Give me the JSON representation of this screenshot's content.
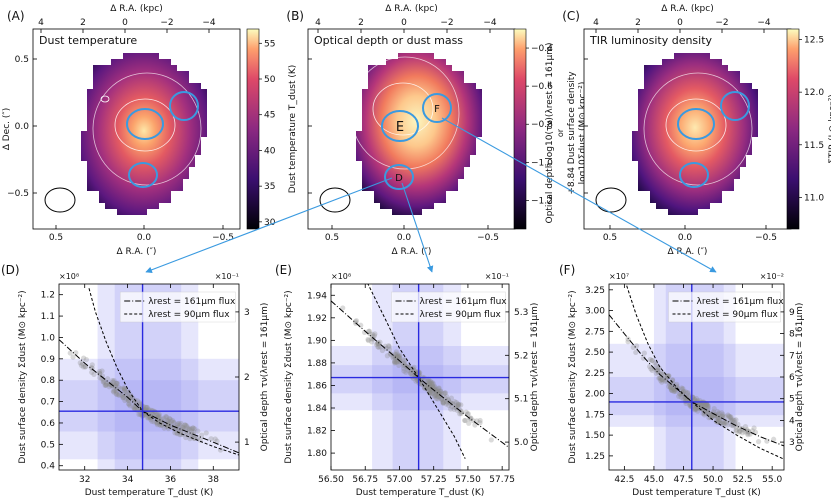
{
  "figure": {
    "connectors_color": "#3a9ae0",
    "ellipse_color": "#3a9ae0"
  },
  "chart_data": [
    {
      "type": "heatmap",
      "panel_label": "(A)",
      "title": "Dust temperature",
      "top_axis_label": "Δ R.A. (kpc)",
      "top_ticks": [
        "4",
        "2",
        "0",
        "−2",
        "−4"
      ],
      "xlabel": "Δ R.A. (″)",
      "x_ticks": [
        "0.5",
        "0.0",
        "−0.5"
      ],
      "ylabel": "Δ Dec. (″)",
      "y_ticks": [
        "0.5",
        "0.0",
        "−0.5"
      ],
      "colorbar_label": "Dust temperature T_dust (K)",
      "colorbar_ticks": [
        "55",
        "50",
        "45",
        "40",
        "35",
        "30"
      ],
      "colorbar_range": [
        29,
        57
      ],
      "regions": [
        "E",
        "D",
        "F"
      ]
    },
    {
      "type": "heatmap",
      "panel_label": "(B)",
      "title": "Optical depth or dust mass",
      "top_axis_label": "Δ R.A. (kpc)",
      "top_ticks": [
        "4",
        "2",
        "0",
        "−2",
        "−4"
      ],
      "xlabel": "Δ R.A. (″)",
      "x_ticks": [
        "0.5",
        "0.0",
        "−0.5"
      ],
      "colorbar_label_lines": [
        "Optical depth log10(τν)(λrest = 161μm)",
        "or",
        "+8.84 Dust surface density",
        "log10Σdust (M⊙ kpc⁻²)"
      ],
      "colorbar_ticks": [
        "−0.4",
        "−0.6",
        "−0.8",
        "−1.0",
        "−1.2"
      ],
      "colorbar_range": [
        -1.35,
        -0.3
      ],
      "regions": [
        "E",
        "D",
        "F"
      ],
      "region_labels": {
        "E": "E",
        "D": "D",
        "F": "F"
      }
    },
    {
      "type": "heatmap",
      "panel_label": "(C)",
      "title": "TIR luminosity density",
      "top_axis_label": "Δ R.A. (kpc)",
      "top_ticks": [
        "4",
        "2",
        "0",
        "−2",
        "−4"
      ],
      "xlabel": "Δ R.A. (″)",
      "x_ticks": [
        "0.5",
        "0.0",
        "−0.5"
      ],
      "colorbar_label": "ΣTIR (L⊙ kpc⁻²)",
      "colorbar_ticks": [
        "12.5",
        "12.0",
        "11.5",
        "11.0"
      ],
      "colorbar_range": [
        10.7,
        12.6
      ],
      "regions": [
        "E",
        "D",
        "F"
      ]
    },
    {
      "type": "scatter",
      "panel_label": "(D)",
      "xlabel": "Dust temperature T_dust (K)",
      "x_ticks": [
        "32",
        "34",
        "36",
        "38"
      ],
      "xlim": [
        30.8,
        39.2
      ],
      "ylabel": "Dust surface density Σdust (M⊙ kpc⁻²)",
      "y_ticks": [
        "0.4",
        "0.5",
        "0.6",
        "0.7",
        "0.8",
        "0.9",
        "1.0",
        "1.1",
        "1.2"
      ],
      "ylim": [
        0.38,
        1.25
      ],
      "y_scale_text": "×10⁸",
      "right_label": "Optical depth τν(λrest = 161μm)",
      "right_ticks": [
        "1",
        "2",
        "3"
      ],
      "right_scale_text": "×10⁻¹",
      "best_fit": {
        "x": 34.7,
        "y": 0.655
      },
      "x_band_inner": [
        33.4,
        36.5
      ],
      "x_band_outer": [
        32.6,
        37.3
      ],
      "y_band_inner": [
        0.56,
        0.8
      ],
      "y_band_outer": [
        0.43,
        0.9
      ],
      "legend": [
        "λrest = 161μm flux",
        "λrest = 90μm flux"
      ],
      "line_161": {
        "x": [
          30.8,
          32,
          33,
          34,
          34.7,
          36,
          37,
          38,
          39.2
        ],
        "y": [
          0.99,
          0.88,
          0.8,
          0.72,
          0.655,
          0.59,
          0.55,
          0.51,
          0.46
        ]
      },
      "line_90": {
        "x": [
          32.2,
          32.5,
          33,
          33.5,
          34,
          34.7,
          35.5,
          36.5,
          38,
          39.2
        ],
        "y": [
          1.23,
          1.12,
          0.98,
          0.86,
          0.76,
          0.655,
          0.6,
          0.55,
          0.49,
          0.45
        ]
      }
    },
    {
      "type": "scatter",
      "panel_label": "(E)",
      "xlabel": "Dust temperature T_dust (K)",
      "x_ticks": [
        "56.50",
        "56.75",
        "57.00",
        "57.25",
        "57.50",
        "57.75"
      ],
      "xlim": [
        56.5,
        57.8
      ],
      "ylabel": "Dust surface density Σdust (M⊙ kpc⁻²)",
      "y_ticks": [
        "1.80",
        "1.82",
        "1.84",
        "1.86",
        "1.88",
        "1.90",
        "1.92",
        "1.94"
      ],
      "ylim": [
        1.785,
        1.95
      ],
      "y_scale_text": "×10⁸",
      "right_label": "Optical depth τν(λrest = 161μm)",
      "right_ticks": [
        "5.0",
        "5.1",
        "5.2",
        "5.3"
      ],
      "right_scale_text": "×10⁻¹",
      "best_fit": {
        "x": 57.14,
        "y": 1.867
      },
      "x_band_inner": [
        56.95,
        57.32
      ],
      "x_band_outer": [
        56.8,
        57.45
      ],
      "y_band_inner": [
        1.853,
        1.878
      ],
      "y_band_outer": [
        1.838,
        1.895
      ],
      "legend": [
        "λrest = 161μm flux",
        "λrest = 90μm flux"
      ],
      "line_161": {
        "x": [
          56.5,
          56.75,
          57.0,
          57.14,
          57.25,
          57.5,
          57.8
        ],
        "y": [
          1.935,
          1.908,
          1.882,
          1.867,
          1.856,
          1.832,
          1.805
        ]
      },
      "line_90": {
        "x": [
          56.75,
          56.9,
          57.0,
          57.14,
          57.25,
          57.4,
          57.48
        ],
        "y": [
          1.955,
          1.918,
          1.893,
          1.867,
          1.845,
          1.815,
          1.795
        ]
      }
    },
    {
      "type": "scatter",
      "panel_label": "(F)",
      "xlabel": "Dust temperature T_dust (K)",
      "x_ticks": [
        "42.5",
        "45.0",
        "47.5",
        "50.0",
        "52.5",
        "55.0"
      ],
      "xlim": [
        41.2,
        56.0
      ],
      "ylabel": "Dust surface density Σdust (M⊙ kpc⁻²)",
      "y_ticks": [
        "1.25",
        "1.50",
        "1.75",
        "2.00",
        "2.25",
        "2.50",
        "2.75",
        "3.00",
        "3.25"
      ],
      "ylim": [
        1.08,
        3.32
      ],
      "y_scale_text": "×10⁷",
      "right_label": "Optical depth τν(λrest = 161μm)",
      "right_ticks": [
        "3",
        "4",
        "5",
        "6",
        "7",
        "8",
        "9"
      ],
      "right_scale_text": "×10⁻²",
      "best_fit": {
        "x": 48.2,
        "y": 1.9
      },
      "x_band_inner": [
        46.0,
        50.9
      ],
      "x_band_outer": [
        45.0,
        51.9
      ],
      "y_band_inner": [
        1.74,
        2.2
      ],
      "y_band_outer": [
        1.6,
        2.6
      ],
      "legend": [
        "λrest = 161μm flux",
        "λrest = 90μm flux"
      ],
      "line_161": {
        "x": [
          41.2,
          42.5,
          44,
          45.5,
          47,
          48.2,
          50,
          52,
          54,
          56
        ],
        "y": [
          2.95,
          2.72,
          2.46,
          2.23,
          2.05,
          1.9,
          1.76,
          1.61,
          1.48,
          1.37
        ]
      },
      "line_90": {
        "x": [
          42.7,
          43.5,
          44.5,
          45.5,
          47,
          48.2,
          50,
          52,
          54,
          56
        ],
        "y": [
          3.3,
          2.95,
          2.6,
          2.32,
          2.06,
          1.9,
          1.68,
          1.5,
          1.34,
          1.21
        ]
      }
    }
  ]
}
